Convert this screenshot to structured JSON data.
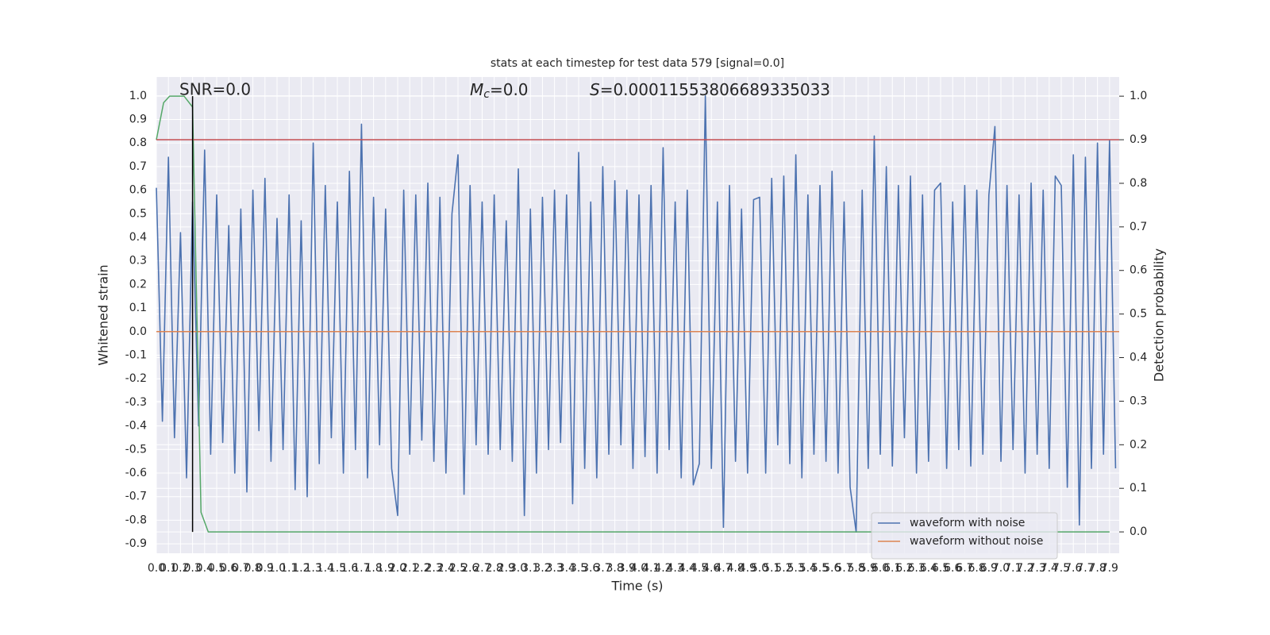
{
  "chart_data": {
    "type": "line",
    "title": "stats at each timestep for test data 579 [signal=0.0]",
    "x_label": "Time (s)",
    "y_label": "Whitened strain",
    "y2_label": "Detection probability",
    "annotations": [
      {
        "text": "SNR=0.0"
      },
      {
        "symbol": "M",
        "sub": "c",
        "text": "=0.0"
      },
      {
        "symbol": "S",
        "text": "=0.00011553806689335033"
      }
    ],
    "xlim": [
      0,
      7.98
    ],
    "ylim": [
      -0.94,
      1.08
    ],
    "y2lim": [
      -0.049,
      1.044
    ],
    "xticks": [
      {
        "value": 0,
        "label": "0.0"
      },
      0.1,
      0.2,
      0.3,
      0.4,
      0.5,
      0.6,
      0.7,
      0.8,
      0.9,
      {
        "value": 1,
        "label": "1.0"
      },
      1.1,
      1.2,
      1.3,
      1.4,
      1.5,
      1.6,
      1.7,
      1.8,
      1.9,
      {
        "value": 2,
        "label": "2.0"
      },
      2.1,
      2.2,
      2.3,
      2.4,
      2.5,
      2.6,
      2.7,
      2.8,
      2.9,
      {
        "value": 3,
        "label": "3.0"
      },
      3.1,
      3.2,
      3.3,
      3.4,
      3.5,
      3.6,
      3.7,
      3.8,
      3.9,
      {
        "value": 4,
        "label": "4.0"
      },
      4.1,
      4.2,
      4.3,
      4.4,
      4.5,
      4.6,
      4.7,
      4.8,
      4.9,
      {
        "value": 5,
        "label": "5.0"
      },
      5.1,
      5.2,
      5.3,
      5.4,
      5.5,
      5.6,
      5.7,
      5.8,
      5.9,
      {
        "value": 6,
        "label": "6.0"
      },
      6.1,
      6.2,
      6.3,
      6.4,
      6.5,
      6.6,
      6.7,
      6.8,
      6.9,
      {
        "value": 7,
        "label": "7.0"
      },
      7.1,
      7.2,
      7.3,
      7.4,
      7.5,
      7.6,
      7.7,
      7.8,
      7.9
    ],
    "yticks": [
      -0.9,
      -0.8,
      -0.7,
      -0.6,
      -0.5,
      -0.4,
      -0.3,
      -0.2,
      -0.1,
      {
        "value": 0,
        "label": "0.0"
      },
      0.1,
      0.2,
      0.3,
      0.4,
      0.5,
      0.6,
      0.7,
      0.8,
      0.9,
      {
        "value": 1,
        "label": "1.0"
      }
    ],
    "y2ticks": [
      {
        "value": 0,
        "label": "0.0"
      },
      0.1,
      0.2,
      0.3,
      0.4,
      0.5,
      0.6,
      0.7,
      0.8,
      0.9,
      {
        "value": 1,
        "label": "1.0"
      }
    ],
    "grid": true,
    "legend": "lower right",
    "series": [
      {
        "name": "waveform with noise",
        "color": "#4c72b0",
        "x": [
          0,
          0.05,
          0.1,
          0.15,
          0.2,
          0.25,
          0.3,
          0.35,
          0.4,
          0.45,
          0.5,
          0.55,
          0.6,
          0.65,
          0.7,
          0.75,
          0.8,
          0.85,
          0.9,
          0.95,
          1,
          1.05,
          1.1,
          1.15,
          1.2,
          1.25,
          1.3,
          1.35,
          1.4,
          1.45,
          1.5,
          1.55,
          1.6,
          1.65,
          1.7,
          1.75,
          1.8,
          1.85,
          1.9,
          1.95,
          2,
          2.05,
          2.1,
          2.15,
          2.2,
          2.25,
          2.3,
          2.35,
          2.4,
          2.45,
          2.5,
          2.55,
          2.6,
          2.65,
          2.7,
          2.75,
          2.8,
          2.85,
          2.9,
          2.95,
          3,
          3.05,
          3.1,
          3.15,
          3.2,
          3.25,
          3.3,
          3.35,
          3.4,
          3.45,
          3.5,
          3.55,
          3.6,
          3.65,
          3.7,
          3.75,
          3.8,
          3.85,
          3.9,
          3.95,
          4,
          4.05,
          4.1,
          4.15,
          4.2,
          4.25,
          4.3,
          4.35,
          4.4,
          4.45,
          4.5,
          4.55,
          4.6,
          4.65,
          4.7,
          4.75,
          4.8,
          4.85,
          4.9,
          4.95,
          5,
          5.05,
          5.1,
          5.15,
          5.2,
          5.25,
          5.3,
          5.35,
          5.4,
          5.45,
          5.5,
          5.55,
          5.6,
          5.65,
          5.7,
          5.75,
          5.8,
          5.85,
          5.9,
          5.95,
          6,
          6.05,
          6.1,
          6.15,
          6.2,
          6.25,
          6.3,
          6.35,
          6.4,
          6.45,
          6.5,
          6.55,
          6.6,
          6.65,
          6.7,
          6.75,
          6.8,
          6.85,
          6.9,
          6.95,
          7,
          7.05,
          7.1,
          7.15,
          7.2,
          7.25,
          7.3,
          7.35,
          7.4,
          7.45,
          7.5,
          7.55,
          7.6,
          7.65,
          7.7,
          7.75,
          7.8,
          7.85,
          7.9,
          7.95
        ],
        "values": [
          0.61,
          -0.38,
          0.74,
          -0.45,
          0.42,
          -0.62,
          0.55,
          -0.4,
          0.77,
          -0.52,
          0.58,
          -0.47,
          0.45,
          -0.6,
          0.52,
          -0.68,
          0.6,
          -0.42,
          0.65,
          -0.55,
          0.48,
          -0.5,
          0.58,
          -0.67,
          0.47,
          -0.7,
          0.8,
          -0.56,
          0.62,
          -0.45,
          0.55,
          -0.6,
          0.68,
          -0.5,
          0.88,
          -0.62,
          0.57,
          -0.48,
          0.52,
          -0.58,
          -0.78,
          0.6,
          -0.52,
          0.58,
          -0.46,
          0.63,
          -0.55,
          0.57,
          -0.6,
          0.5,
          0.75,
          -0.69,
          0.62,
          -0.48,
          0.55,
          -0.52,
          0.58,
          -0.5,
          0.47,
          -0.55,
          0.69,
          -0.78,
          0.52,
          -0.6,
          0.57,
          -0.5,
          0.6,
          -0.47,
          0.58,
          -0.73,
          0.76,
          -0.58,
          0.55,
          -0.62,
          0.7,
          -0.52,
          0.64,
          -0.48,
          0.6,
          -0.58,
          0.58,
          -0.53,
          0.62,
          -0.6,
          0.78,
          -0.5,
          0.55,
          -0.62,
          0.6,
          -0.65,
          -0.56,
          1.0,
          -0.58,
          0.55,
          -0.83,
          0.62,
          -0.55,
          0.52,
          -0.6,
          0.56,
          0.57,
          -0.6,
          0.65,
          -0.48,
          0.66,
          -0.56,
          0.75,
          -0.62,
          0.58,
          -0.52,
          0.62,
          -0.55,
          0.68,
          -0.6,
          0.55,
          -0.66,
          -0.85,
          0.6,
          -0.58,
          0.83,
          -0.52,
          0.7,
          -0.57,
          0.62,
          -0.45,
          0.66,
          -0.6,
          0.58,
          -0.55,
          0.6,
          0.63,
          -0.58,
          0.55,
          -0.5,
          0.62,
          -0.57,
          0.6,
          -0.52,
          0.58,
          0.87,
          -0.55,
          0.62,
          -0.5,
          0.58,
          -0.6,
          0.63,
          -0.52,
          0.6,
          -0.58,
          0.66,
          0.62,
          -0.66,
          0.75,
          -0.82,
          0.74,
          -0.58,
          0.8,
          -0.52,
          0.81,
          -0.58
        ]
      },
      {
        "name": "waveform without noise",
        "color": "#dd8452",
        "x": [
          0,
          7.98
        ],
        "values": [
          0,
          0
        ]
      },
      {
        "color": "#55a868",
        "axis": "y2",
        "x": [
          0,
          0.06,
          0.11,
          0.23,
          0.3,
          0.37,
          0.43,
          7.9
        ],
        "values": [
          0.9,
          0.985,
          1.0,
          1.0,
          0.975,
          0.045,
          0,
          0
        ]
      }
    ],
    "hlines": [
      {
        "value": 0.9,
        "axis": "y2",
        "color": "#c44e52"
      }
    ],
    "vlines": [
      {
        "x": 0.3,
        "ymin": 0,
        "ymax": 1,
        "axis": "y2",
        "color": "#000000"
      }
    ]
  }
}
